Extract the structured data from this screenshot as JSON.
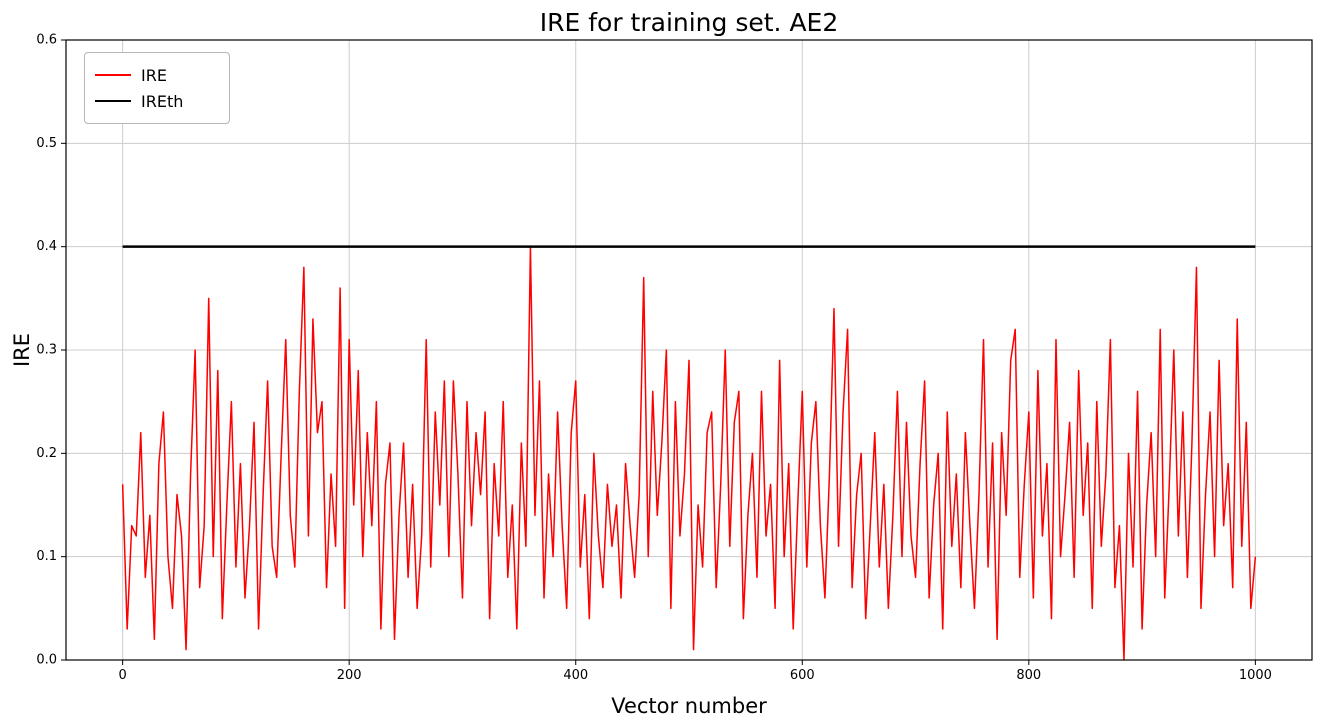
{
  "chart_data": {
    "type": "line",
    "title": "IRE for training set. AE2",
    "xlabel": "Vector number",
    "ylabel": "IRE",
    "xlim": [
      -50,
      1050
    ],
    "ylim": [
      0,
      0.6
    ],
    "xticks": [
      0,
      200,
      400,
      600,
      800,
      1000
    ],
    "yticks": [
      "0.0",
      "0.1",
      "0.2",
      "0.3",
      "0.4",
      "0.5",
      "0.6"
    ],
    "grid": true,
    "grid_color": "#cccccc",
    "legend_position": "upper left",
    "series": [
      {
        "name": "IRE",
        "color": "#ff0000",
        "width": 1.5,
        "x_start": 0,
        "x_step": 4,
        "values": [
          0.17,
          0.03,
          0.13,
          0.12,
          0.22,
          0.08,
          0.14,
          0.02,
          0.19,
          0.24,
          0.1,
          0.05,
          0.16,
          0.12,
          0.01,
          0.18,
          0.3,
          0.07,
          0.13,
          0.35,
          0.1,
          0.28,
          0.04,
          0.15,
          0.25,
          0.09,
          0.19,
          0.06,
          0.13,
          0.23,
          0.03,
          0.16,
          0.27,
          0.11,
          0.08,
          0.2,
          0.31,
          0.14,
          0.09,
          0.26,
          0.38,
          0.12,
          0.33,
          0.22,
          0.25,
          0.07,
          0.18,
          0.11,
          0.36,
          0.05,
          0.31,
          0.15,
          0.28,
          0.1,
          0.22,
          0.13,
          0.25,
          0.03,
          0.17,
          0.21,
          0.02,
          0.14,
          0.21,
          0.08,
          0.17,
          0.05,
          0.12,
          0.31,
          0.09,
          0.24,
          0.15,
          0.27,
          0.1,
          0.27,
          0.18,
          0.06,
          0.25,
          0.13,
          0.22,
          0.16,
          0.24,
          0.04,
          0.19,
          0.12,
          0.25,
          0.08,
          0.15,
          0.03,
          0.21,
          0.11,
          0.4,
          0.14,
          0.27,
          0.06,
          0.18,
          0.1,
          0.24,
          0.13,
          0.05,
          0.22,
          0.27,
          0.09,
          0.16,
          0.04,
          0.2,
          0.12,
          0.07,
          0.17,
          0.11,
          0.15,
          0.06,
          0.19,
          0.13,
          0.08,
          0.16,
          0.37,
          0.1,
          0.26,
          0.14,
          0.21,
          0.3,
          0.05,
          0.25,
          0.12,
          0.18,
          0.29,
          0.01,
          0.15,
          0.09,
          0.22,
          0.24,
          0.07,
          0.17,
          0.3,
          0.11,
          0.23,
          0.26,
          0.04,
          0.14,
          0.2,
          0.08,
          0.26,
          0.12,
          0.17,
          0.05,
          0.29,
          0.1,
          0.19,
          0.03,
          0.15,
          0.26,
          0.09,
          0.21,
          0.25,
          0.13,
          0.06,
          0.18,
          0.34,
          0.11,
          0.24,
          0.32,
          0.07,
          0.16,
          0.2,
          0.04,
          0.13,
          0.22,
          0.09,
          0.17,
          0.05,
          0.14,
          0.26,
          0.1,
          0.23,
          0.12,
          0.08,
          0.19,
          0.27,
          0.06,
          0.15,
          0.2,
          0.03,
          0.24,
          0.11,
          0.18,
          0.07,
          0.22,
          0.13,
          0.05,
          0.16,
          0.31,
          0.09,
          0.21,
          0.02,
          0.22,
          0.14,
          0.29,
          0.32,
          0.08,
          0.17,
          0.24,
          0.06,
          0.28,
          0.12,
          0.19,
          0.04,
          0.31,
          0.1,
          0.16,
          0.23,
          0.08,
          0.28,
          0.14,
          0.21,
          0.05,
          0.25,
          0.11,
          0.18,
          0.31,
          0.07,
          0.13,
          0.0,
          0.2,
          0.09,
          0.26,
          0.03,
          0.15,
          0.22,
          0.1,
          0.32,
          0.06,
          0.17,
          0.3,
          0.12,
          0.24,
          0.08,
          0.21,
          0.38,
          0.05,
          0.16,
          0.24,
          0.1,
          0.29,
          0.13,
          0.19,
          0.07,
          0.33,
          0.11,
          0.23,
          0.05,
          0.1
        ]
      },
      {
        "name": "IREth",
        "color": "#000000",
        "width": 2.5,
        "x": [
          0,
          1000
        ],
        "values": [
          0.4,
          0.4
        ]
      }
    ]
  }
}
